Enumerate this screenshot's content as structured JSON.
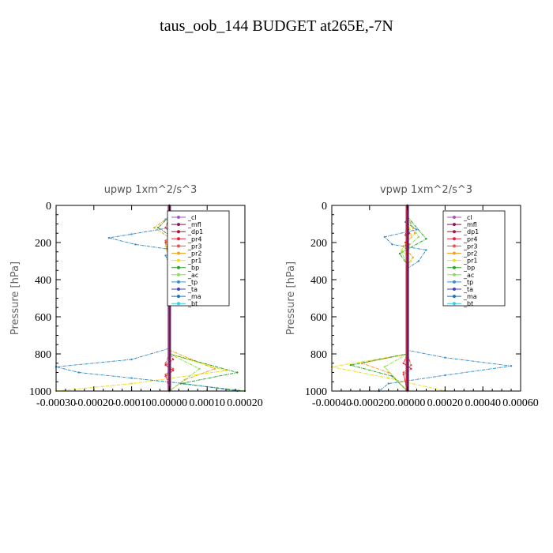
{
  "title": "taus_oob_144  BUDGET at265E,-7N",
  "chart_data": [
    {
      "type": "line",
      "title": "upwp  1xm^2/s^3",
      "ylabel": "Pressure [hPa]",
      "xlim": [
        -0.0003,
        0.0002
      ],
      "ylim": [
        1000,
        0
      ],
      "xticks": [
        "-0.00030",
        "-0.00020",
        "-0.00010",
        "0.00000",
        "0.00010",
        "0.00020"
      ],
      "yticks": [
        "0",
        "200",
        "400",
        "600",
        "800",
        "1000"
      ],
      "legend_position": "top-right",
      "series": [
        {
          "name": "_cl",
          "color": "#9b59c6",
          "points": [
            [
              0,
              0
            ],
            [
              0,
              1000
            ]
          ]
        },
        {
          "name": "_mfl",
          "color": "#8b1a4a",
          "points": [
            [
              0,
              0
            ],
            [
              0,
              1000
            ]
          ]
        },
        {
          "name": "_dp1",
          "color": "#b0103a",
          "points": [
            [
              0,
              0
            ],
            [
              0,
              1000
            ]
          ]
        },
        {
          "name": "_pr4",
          "color": "#e8203c",
          "points": [
            [
              0,
              60
            ],
            [
              -1e-05,
              120
            ],
            [
              1e-05,
              170
            ],
            [
              -1e-05,
              200
            ],
            [
              0,
              300
            ],
            [
              0,
              780
            ],
            [
              1e-05,
              830
            ],
            [
              -1e-05,
              860
            ],
            [
              1e-05,
              890
            ],
            [
              -1e-05,
              920
            ],
            [
              0,
              950
            ],
            [
              0,
              1000
            ]
          ]
        },
        {
          "name": "_pr3",
          "color": "#f05040",
          "points": [
            [
              0,
              60
            ],
            [
              1e-05,
              150
            ],
            [
              -1e-05,
              190
            ],
            [
              0,
              300
            ],
            [
              0,
              800
            ],
            [
              -1e-05,
              850
            ],
            [
              1e-05,
              880
            ],
            [
              -1e-05,
              910
            ],
            [
              0,
              1000
            ]
          ]
        },
        {
          "name": "_pr2",
          "color": "#f4a020",
          "points": [
            [
              0,
              60
            ],
            [
              -4e-05,
              120
            ],
            [
              2e-05,
              200
            ],
            [
              0,
              300
            ],
            [
              0,
              780
            ],
            [
              0.00012,
              880
            ],
            [
              4e-05,
              940
            ],
            [
              0,
              1000
            ]
          ]
        },
        {
          "name": "_pr1",
          "color": "#e8e020",
          "points": [
            [
              0,
              60
            ],
            [
              2e-05,
              150
            ],
            [
              -1e-05,
              220
            ],
            [
              0,
              300
            ],
            [
              0,
              800
            ],
            [
              0.00015,
              890
            ],
            [
              -0.0001,
              960
            ],
            [
              -0.0003,
              1000
            ]
          ]
        },
        {
          "name": "_bp",
          "color": "#2ca02c",
          "points": [
            [
              0,
              60
            ],
            [
              -3e-05,
              120
            ],
            [
              3e-05,
              200
            ],
            [
              0,
              300
            ],
            [
              0,
              800
            ],
            [
              0.00018,
              900
            ],
            [
              3e-05,
              960
            ],
            [
              0.0002,
              1000
            ]
          ]
        },
        {
          "name": "_ac",
          "color": "#8fdc50",
          "points": [
            [
              0,
              60
            ],
            [
              1e-05,
              150
            ],
            [
              0,
              300
            ],
            [
              0,
              800
            ],
            [
              8e-05,
              880
            ],
            [
              0,
              1000
            ]
          ]
        },
        {
          "name": "_tp",
          "color": "#3a8fc8",
          "points": [
            [
              0,
              60
            ],
            [
              -1e-05,
              75
            ],
            [
              3e-05,
              110
            ],
            [
              -0.0001,
              155
            ],
            [
              -0.00016,
              175
            ],
            [
              -9e-05,
              210
            ],
            [
              3e-05,
              245
            ],
            [
              -1e-05,
              270
            ],
            [
              0,
              320
            ],
            [
              0,
              520
            ],
            [
              0,
              770
            ],
            [
              -0.0001,
              830
            ],
            [
              -0.0003,
              870
            ],
            [
              -0.00024,
              900
            ],
            [
              -0.0001,
              930
            ],
            [
              4e-05,
              960
            ],
            [
              0.00018,
              1000
            ]
          ]
        },
        {
          "name": "_ta",
          "color": "#4040c0",
          "points": [
            [
              0,
              0
            ],
            [
              0,
              1000
            ]
          ]
        },
        {
          "name": "_ma",
          "color": "#1a70c0",
          "points": [
            [
              0,
              60
            ],
            [
              0,
              1000
            ]
          ]
        },
        {
          "name": "_bt",
          "color": "#30d0e0",
          "points": [
            [
              0,
              60
            ],
            [
              0,
              1000
            ]
          ]
        }
      ]
    },
    {
      "type": "line",
      "title": "vpwp  1xm^2/s^3",
      "ylabel": "Pressure [hPa]",
      "xlim": [
        -0.0004,
        0.0006
      ],
      "ylim": [
        1000,
        0
      ],
      "xticks": [
        "-0.00040",
        "-0.00020",
        "0.00000",
        "0.00020",
        "0.00040",
        "0.00060"
      ],
      "yticks": [
        "0",
        "200",
        "400",
        "600",
        "800",
        "1000"
      ],
      "legend_position": "top-right",
      "series": [
        {
          "name": "_cl",
          "color": "#9b59c6",
          "points": [
            [
              0,
              0
            ],
            [
              0,
              1000
            ]
          ]
        },
        {
          "name": "_mfl",
          "color": "#8b1a4a",
          "points": [
            [
              0,
              0
            ],
            [
              0,
              1000
            ]
          ]
        },
        {
          "name": "_dp1",
          "color": "#b0103a",
          "points": [
            [
              0,
              0
            ],
            [
              0,
              1000
            ]
          ]
        },
        {
          "name": "_pr4",
          "color": "#e8203c",
          "points": [
            [
              0,
              60
            ],
            [
              1e-05,
              150
            ],
            [
              -1e-05,
              200
            ],
            [
              0,
              300
            ],
            [
              0,
              800
            ],
            [
              -2e-05,
              850
            ],
            [
              2e-05,
              880
            ],
            [
              -2e-05,
              910
            ],
            [
              0,
              1000
            ]
          ]
        },
        {
          "name": "_pr3",
          "color": "#f05040",
          "points": [
            [
              0,
              60
            ],
            [
              -1e-05,
              160
            ],
            [
              1e-05,
              210
            ],
            [
              0,
              300
            ],
            [
              0,
              800
            ],
            [
              2e-05,
              860
            ],
            [
              -2e-05,
              900
            ],
            [
              0,
              1000
            ]
          ]
        },
        {
          "name": "_pr2",
          "color": "#f4a020",
          "points": [
            [
              0,
              60
            ],
            [
              4e-05,
              150
            ],
            [
              -2e-05,
              220
            ],
            [
              3e-05,
              280
            ],
            [
              0,
              320
            ],
            [
              0,
              800
            ],
            [
              -0.00024,
              850
            ],
            [
              -0.0001,
              900
            ],
            [
              0,
              1000
            ]
          ]
        },
        {
          "name": "_pr1",
          "color": "#e8e020",
          "points": [
            [
              0,
              60
            ],
            [
              2e-05,
              160
            ],
            [
              -3e-05,
              240
            ],
            [
              2e-05,
              300
            ],
            [
              0,
              340
            ],
            [
              0,
              800
            ],
            [
              -0.0004,
              870
            ],
            [
              -0.0001,
              930
            ],
            [
              0.0002,
              1000
            ]
          ]
        },
        {
          "name": "_bp",
          "color": "#2ca02c",
          "points": [
            [
              0,
              60
            ],
            [
              0.0001,
              180
            ],
            [
              -4e-05,
              260
            ],
            [
              0,
              320
            ],
            [
              0,
              800
            ],
            [
              -0.0003,
              860
            ],
            [
              -8e-05,
              920
            ],
            [
              0,
              1000
            ]
          ]
        },
        {
          "name": "_ac",
          "color": "#8fdc50",
          "points": [
            [
              0,
              60
            ],
            [
              6e-05,
              170
            ],
            [
              -3e-05,
              250
            ],
            [
              0,
              320
            ],
            [
              0,
              800
            ],
            [
              -0.00012,
              870
            ],
            [
              0,
              1000
            ]
          ]
        },
        {
          "name": "_tp",
          "color": "#3a8fc8",
          "points": [
            [
              0,
              60
            ],
            [
              -1e-05,
              90
            ],
            [
              5e-05,
              130
            ],
            [
              -0.00012,
              170
            ],
            [
              -8e-05,
              210
            ],
            [
              0.0001,
              240
            ],
            [
              6e-05,
              300
            ],
            [
              0,
              340
            ],
            [
              0,
              780
            ],
            [
              0.0002,
              820
            ],
            [
              0.00055,
              865
            ],
            [
              0.0002,
              915
            ],
            [
              -0.0001,
              960
            ],
            [
              -0.00015,
              1000
            ]
          ]
        },
        {
          "name": "_ta",
          "color": "#4040c0",
          "points": [
            [
              0,
              0
            ],
            [
              0,
              1000
            ]
          ]
        },
        {
          "name": "_ma",
          "color": "#1a70c0",
          "points": [
            [
              0,
              60
            ],
            [
              0,
              1000
            ]
          ]
        },
        {
          "name": "_bt",
          "color": "#30d0e0",
          "points": [
            [
              0,
              60
            ],
            [
              0,
              1000
            ]
          ]
        }
      ]
    }
  ]
}
